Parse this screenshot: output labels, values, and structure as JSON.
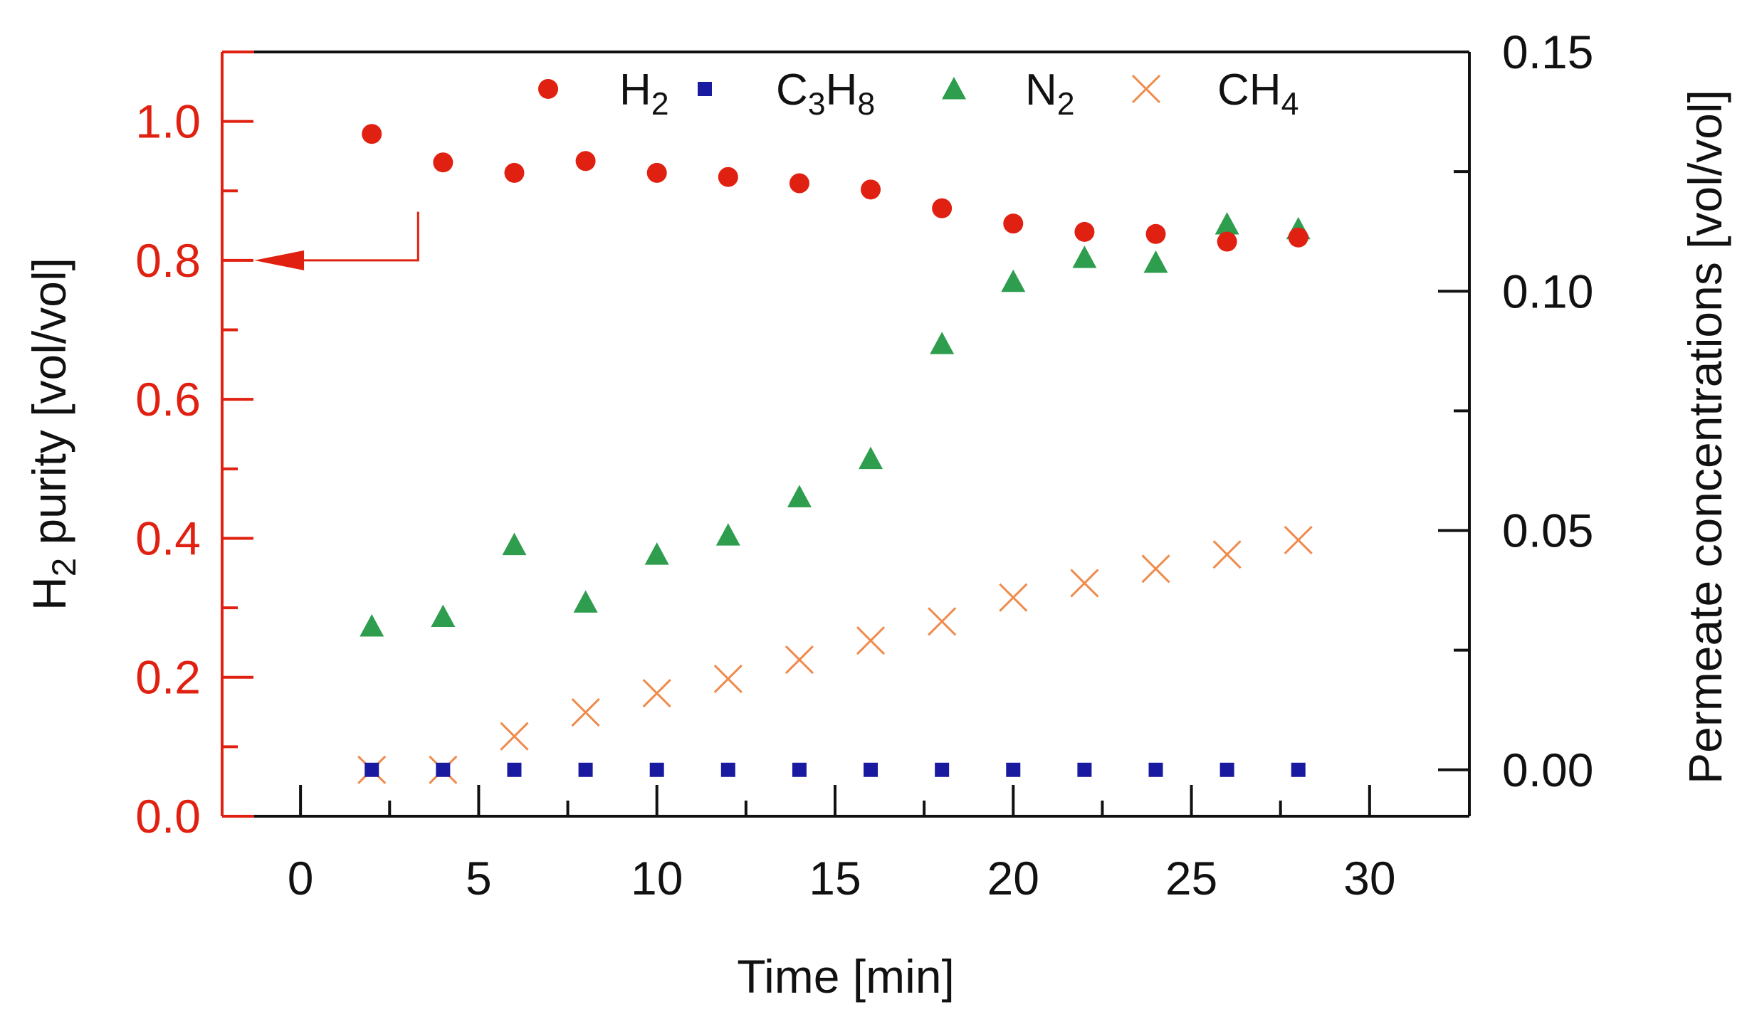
{
  "chart_data": {
    "type": "scatter",
    "xlabel": "Time [min]",
    "xlim": [
      -2.2,
      32.8
    ],
    "xticks": [
      0,
      5,
      10,
      15,
      20,
      25,
      30
    ],
    "xtick_labels": [
      "0",
      "5",
      "10",
      "15",
      "20",
      "25",
      "30"
    ],
    "left_axis": {
      "label_parts": [
        {
          "text": "H",
          "sub": false
        },
        {
          "text": "2",
          "sub": true
        },
        {
          "text": " purity [vol/vol]",
          "sub": false
        }
      ],
      "color": "#e02010",
      "ylim": [
        0,
        1.1
      ],
      "ticks": [
        0.0,
        0.2,
        0.4,
        0.6,
        0.8,
        1.0
      ],
      "tick_labels": [
        "0.0",
        "0.2",
        "0.4",
        "0.6",
        "0.8",
        "1.0"
      ]
    },
    "right_axis": {
      "label": "Permeate concentrations [vol/vol]",
      "color": "#111111",
      "ylim": [
        -0.0097,
        0.15
      ],
      "ticks": [
        0.0,
        0.05,
        0.1,
        0.15
      ],
      "tick_labels": [
        "0.00",
        "0.05",
        "0.10",
        "0.15"
      ]
    },
    "arrow_annotation": {
      "from_x": 3.3,
      "corner_y": 0.8,
      "top_y": 0.87,
      "to_x": -1.3,
      "axis": "left"
    },
    "series": [
      {
        "name_parts": [
          {
            "text": "H",
            "sub": false
          },
          {
            "text": "2",
            "sub": true
          }
        ],
        "axis": "left",
        "marker": "circle",
        "color": "#e02010",
        "x": [
          2,
          4,
          6,
          8,
          10,
          12,
          14,
          16,
          18,
          20,
          22,
          24,
          26,
          28
        ],
        "y": [
          0.982,
          0.941,
          0.926,
          0.943,
          0.926,
          0.92,
          0.911,
          0.902,
          0.875,
          0.853,
          0.841,
          0.838,
          0.827,
          0.833
        ]
      },
      {
        "name_parts": [
          {
            "text": "C",
            "sub": false
          },
          {
            "text": "3",
            "sub": true
          },
          {
            "text": "H",
            "sub": false
          },
          {
            "text": "8",
            "sub": true
          }
        ],
        "axis": "right",
        "marker": "square",
        "color": "#1a1aa0",
        "x": [
          2,
          4,
          6,
          8,
          10,
          12,
          14,
          16,
          18,
          20,
          22,
          24,
          26,
          28
        ],
        "y": [
          0.0,
          0.0,
          0.0,
          0.0,
          0.0,
          0.0,
          0.0,
          0.0,
          0.0,
          0.0,
          0.0,
          0.0,
          0.0,
          0.0
        ]
      },
      {
        "name_parts": [
          {
            "text": "N",
            "sub": false
          },
          {
            "text": "2",
            "sub": true
          }
        ],
        "axis": "right",
        "marker": "triangle",
        "color": "#2e9e4e",
        "x": [
          2,
          4,
          6,
          8,
          10,
          12,
          14,
          16,
          18,
          20,
          22,
          24,
          26,
          28
        ],
        "y": [
          0.03,
          0.032,
          0.047,
          0.035,
          0.045,
          0.049,
          0.057,
          0.065,
          0.089,
          0.102,
          0.107,
          0.106,
          0.114,
          0.113
        ]
      },
      {
        "name_parts": [
          {
            "text": "CH",
            "sub": false
          },
          {
            "text": "4",
            "sub": true
          }
        ],
        "axis": "right",
        "marker": "x",
        "color": "#f08a4a",
        "x": [
          2,
          4,
          6,
          8,
          10,
          12,
          14,
          16,
          18,
          20,
          22,
          24,
          26,
          28
        ],
        "y": [
          0.0,
          0.0,
          0.007,
          0.012,
          0.016,
          0.019,
          0.023,
          0.027,
          0.031,
          0.036,
          0.039,
          0.042,
          0.045,
          0.048
        ]
      }
    ]
  }
}
